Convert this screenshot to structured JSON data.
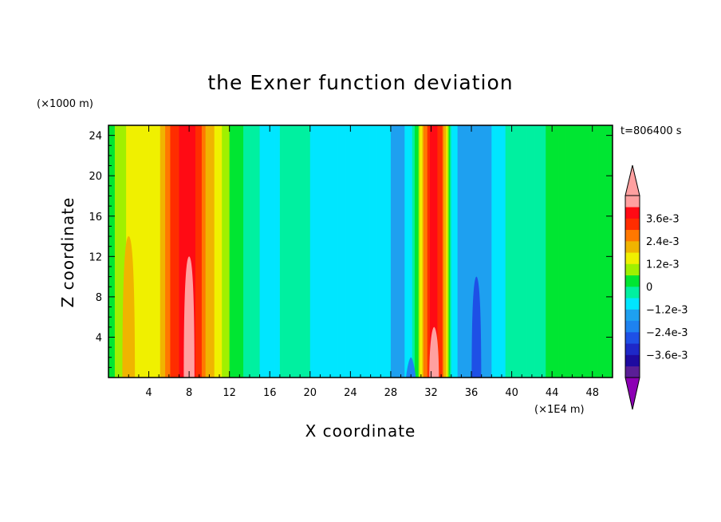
{
  "chart_data": {
    "type": "heatmap",
    "title": "the Exner function deviation",
    "xlabel": "X coordinate",
    "ylabel": "Z coordinate",
    "x_unit": "(×1E4 m)",
    "y_unit": "(×1000 m)",
    "time_label": "t=806400 s",
    "xlim": [
      0,
      50
    ],
    "ylim": [
      0,
      25
    ],
    "x_ticks": [
      4,
      8,
      12,
      16,
      20,
      24,
      28,
      32,
      36,
      40,
      44,
      48
    ],
    "x_tick_labels": [
      "4",
      "8",
      "12",
      "16",
      "20",
      "24",
      "28",
      "32",
      "36",
      "40",
      "44",
      "48"
    ],
    "y_ticks": [
      4,
      8,
      12,
      16,
      20,
      24
    ],
    "y_tick_labels": [
      "4",
      "8",
      "12",
      "16",
      "20",
      "24"
    ],
    "colorbar": {
      "levels": [
        -0.0042,
        -0.0036,
        -0.003,
        -0.0024,
        -0.0018,
        -0.0012,
        -0.0006,
        0,
        0.0006,
        0.0012,
        0.0018,
        0.0024,
        0.003,
        0.0036,
        0.0042
      ],
      "colors": [
        "#5a1e96",
        "#1e0aa0",
        "#1e28c8",
        "#1e50e6",
        "#1e82f0",
        "#1ea0f0",
        "#00e6ff",
        "#00f0a0",
        "#00e632",
        "#a0f000",
        "#f0f000",
        "#f0b400",
        "#ff7800",
        "#ff2d00",
        "#ff0a14",
        "#ffa0a0"
      ],
      "under_color": "#8c00b4",
      "over_color": "#ffa0a0",
      "tick_values": [
        0.0036,
        0.0024,
        0.0012,
        0,
        -0.0012,
        -0.0024,
        -0.0036
      ],
      "tick_labels": [
        "3.6e-3",
        "2.4e-3",
        "1.2e-3",
        "0",
        "−1.2e-3",
        "−2.4e-3",
        "−3.6e-3"
      ]
    },
    "column_profile": {
      "x": [
        0,
        1,
        2,
        3,
        4,
        5,
        5.8,
        6.5,
        7.2,
        7.8,
        8.5,
        9.2,
        9.8,
        10.5,
        11,
        12,
        13,
        14,
        15,
        16,
        18,
        20,
        22,
        24,
        26,
        28,
        29,
        30,
        30.8,
        31.3,
        31.8,
        32.2,
        32.6,
        33,
        33.5,
        34,
        35,
        36,
        37,
        38,
        39,
        40,
        42,
        44,
        46,
        48,
        50
      ],
      "values": [
        0.0002,
        0.0008,
        0.0013,
        0.0015,
        0.0013,
        0.0016,
        0.0026,
        0.0034,
        0.0037,
        0.0038,
        0.0037,
        0.003,
        0.0022,
        0.0018,
        0.0014,
        0.0006,
        0.0002,
        -0.0004,
        -0.0006,
        -0.0007,
        -0.0005,
        -0.0006,
        -0.0007,
        -0.0007,
        -0.0008,
        -0.0012,
        -0.0014,
        -0.0009,
        0.0008,
        0.0024,
        0.0035,
        0.0038,
        0.0036,
        0.0033,
        0.0018,
        -0.0006,
        -0.0015,
        -0.0018,
        -0.0018,
        -0.0012,
        -0.0007,
        -0.0004,
        -0.0002,
        0.0001,
        0.0003,
        0.0003,
        0.0002
      ]
    },
    "features": [
      {
        "x": 8,
        "z_top": 12,
        "value": 0.0045
      },
      {
        "x": 32.3,
        "z_top": 5,
        "value": 0.0043
      },
      {
        "x": 36.5,
        "z_top": 10,
        "value": -0.0025
      },
      {
        "x": 30,
        "z_top": 2,
        "value": -0.0019
      },
      {
        "x": 2,
        "z_top": 14,
        "value": 0.0018
      },
      {
        "x": 15.8,
        "z_top": 13,
        "value": -0.0011
      }
    ]
  }
}
